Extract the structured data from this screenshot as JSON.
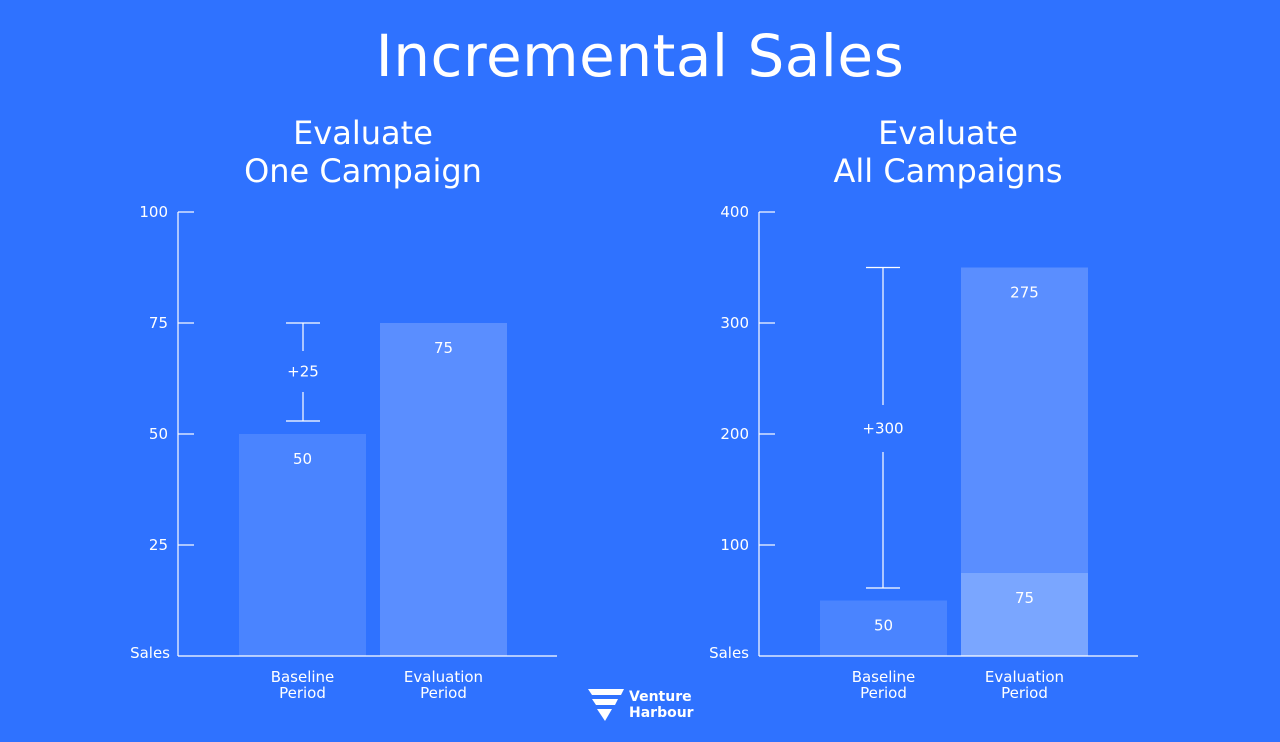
{
  "header": {
    "title": "Incremental Sales"
  },
  "logo": {
    "line1": "Venture",
    "line2": "Harbour"
  },
  "colors": {
    "background": "#2f72ff",
    "baseline_bar": "#4a84ff",
    "evaluation_bar": "#5a8eff",
    "evaluation_bar_lower": "#7aa6ff",
    "axis": "#ffffff"
  },
  "chart_data": [
    {
      "type": "bar",
      "title_lines": [
        "Evaluate",
        "One Campaign"
      ],
      "ylabel": "Sales",
      "ylim": [
        0,
        100
      ],
      "yticks": [
        "100",
        "75",
        "50",
        "25"
      ],
      "yticks_values": [
        100,
        75,
        50,
        25
      ],
      "categories": [
        {
          "line1": "Baseline",
          "line2": "Period"
        },
        {
          "line1": "Evaluation",
          "line2": "Period"
        }
      ],
      "bars": [
        {
          "segments": [
            {
              "value": 50,
              "label": "50"
            }
          ]
        },
        {
          "segments": [
            {
              "value": 75,
              "label": "75"
            }
          ]
        }
      ],
      "difference": {
        "from": 50,
        "to": 75,
        "label": "+25"
      }
    },
    {
      "type": "bar",
      "title_lines": [
        "Evaluate",
        "All Campaigns"
      ],
      "ylabel": "Sales",
      "ylim": [
        0,
        400
      ],
      "yticks": [
        "400",
        "300",
        "200",
        "100"
      ],
      "yticks_values": [
        400,
        300,
        200,
        100
      ],
      "categories": [
        {
          "line1": "Baseline",
          "line2": "Period"
        },
        {
          "line1": "Evaluation",
          "line2": "Period"
        }
      ],
      "bars": [
        {
          "segments": [
            {
              "value": 50,
              "label": "50"
            }
          ]
        },
        {
          "segments": [
            {
              "value": 75,
              "label": "75"
            },
            {
              "value": 275,
              "label": "275"
            }
          ]
        }
      ],
      "difference": {
        "from": 50,
        "to": 350,
        "label": "+300"
      }
    }
  ]
}
